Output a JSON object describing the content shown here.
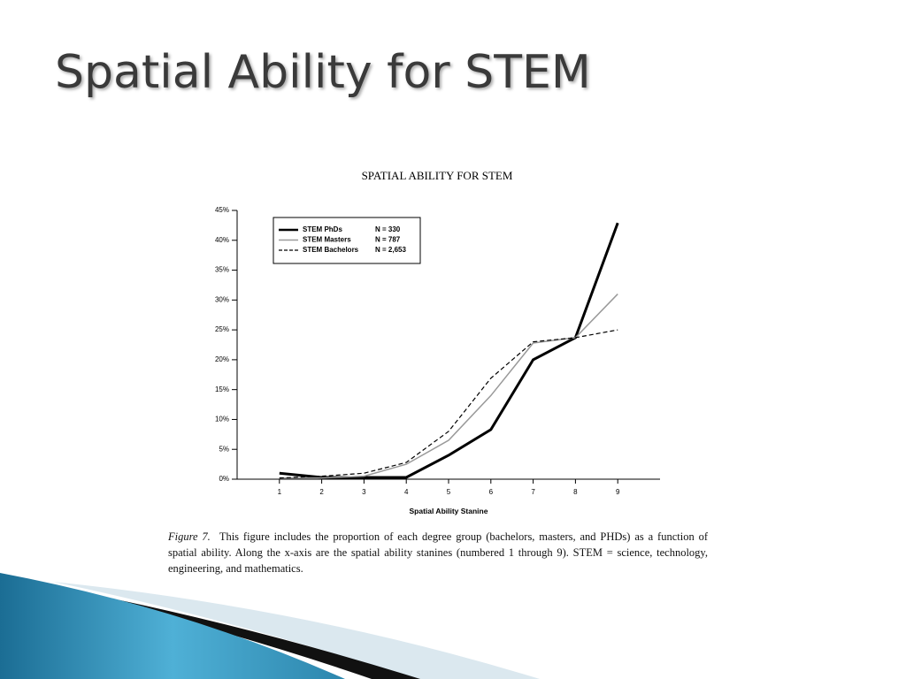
{
  "slide_title": "Spatial Ability for STEM",
  "chart_data": {
    "type": "line",
    "title": "SPATIAL ABILITY FOR STEM",
    "x_label": "Spatial Ability Stanine",
    "x": [
      1,
      2,
      3,
      4,
      5,
      6,
      7,
      8,
      9
    ],
    "xlim": [
      0,
      10
    ],
    "xticks": [
      1,
      2,
      3,
      4,
      5,
      6,
      7,
      8,
      9
    ],
    "ylim": [
      0,
      45
    ],
    "yticks": [
      {
        "value": 0,
        "label": "0%"
      },
      {
        "value": 5,
        "label": "5%"
      },
      {
        "value": 10,
        "label": "10%"
      },
      {
        "value": 15,
        "label": "15%"
      },
      {
        "value": 20,
        "label": "20%"
      },
      {
        "value": 25,
        "label": "25%"
      },
      {
        "value": 30,
        "label": "30%"
      },
      {
        "value": 35,
        "label": "35%"
      },
      {
        "value": 40,
        "label": "40%"
      },
      {
        "value": 45,
        "label": "45%"
      }
    ],
    "series": [
      {
        "name": "STEM PhDs",
        "n_label": "N = 330",
        "color": "#000000",
        "linewidth": 3,
        "linestyle": "solid",
        "values": [
          1.0,
          0.3,
          0.3,
          0.3,
          4.0,
          8.3,
          20,
          23.7,
          42.9
        ]
      },
      {
        "name": "STEM Masters",
        "n_label": "N = 787",
        "color": "#999999",
        "linewidth": 1.5,
        "linestyle": "solid",
        "values": [
          0.2,
          0.2,
          0.5,
          2.5,
          6.5,
          14,
          22.8,
          23.7,
          31
        ]
      },
      {
        "name": "STEM Bachelors",
        "n_label": "N = 2,653",
        "color": "#000000",
        "linewidth": 1.2,
        "linestyle": "dashed",
        "values": [
          0.2,
          0.5,
          1.0,
          2.8,
          8.0,
          16.9,
          23.0,
          23.7,
          25
        ]
      }
    ]
  },
  "caption": {
    "label": "Figure 7.",
    "text": "This figure includes the proportion of each degree group (bachelors, masters, and PHDs) as a function of spatial ability. Along the x-axis are the spatial ability stanines (numbered 1 through 9). STEM = science, technology, engineering, and mathematics."
  }
}
